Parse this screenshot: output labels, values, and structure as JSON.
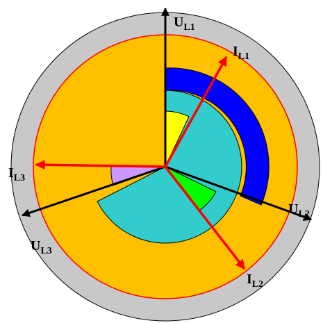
{
  "diagram": {
    "colors": {
      "outer_ring": "#c8c8c8",
      "outer_ring_stroke": "#000000",
      "disk": "#ffc000",
      "disk_stroke": "#ff0000",
      "blue_band": "#0000ff",
      "teal": "#33cccc",
      "yellow": "#ffff00",
      "green": "#00ff00",
      "lilac": "#cc99ff",
      "voltage_axis": "#000000",
      "current_vector": "#ff0000"
    },
    "voltage_axes": [
      {
        "id": "ul1",
        "letter": "U",
        "sub": "L1"
      },
      {
        "id": "ul2",
        "letter": "U",
        "sub": "L2"
      },
      {
        "id": "ul3",
        "letter": "U",
        "sub": "L3"
      }
    ],
    "current_vectors": [
      {
        "id": "il1",
        "letter": "I",
        "sub": "L1"
      },
      {
        "id": "il2",
        "letter": "I",
        "sub": "L2"
      },
      {
        "id": "il3",
        "letter": "I",
        "sub": "L3"
      }
    ]
  }
}
